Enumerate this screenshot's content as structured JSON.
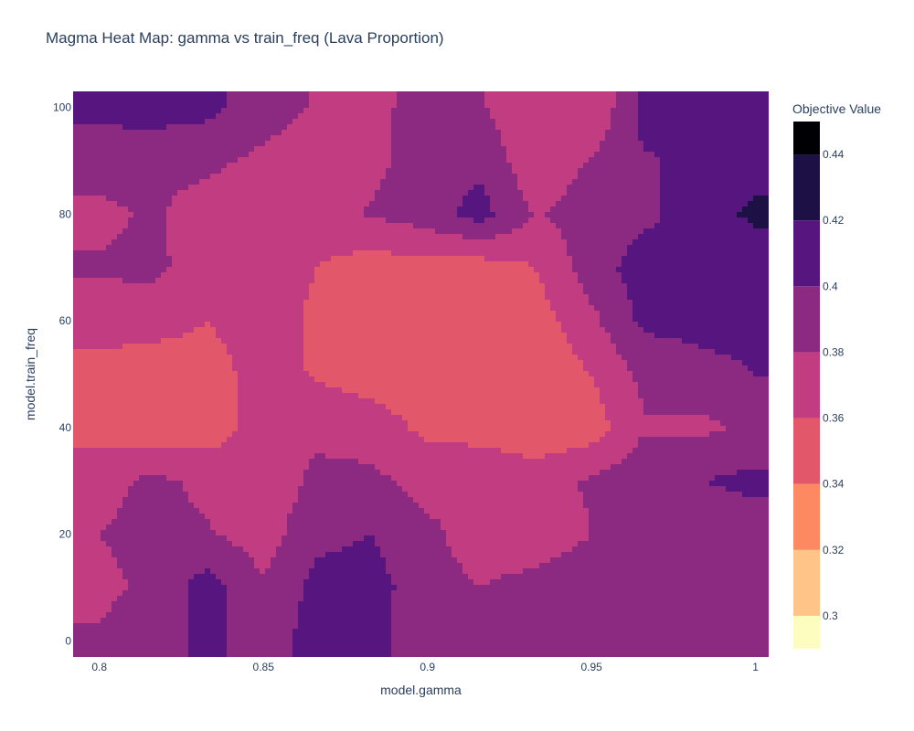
{
  "chart_data": {
    "type": "heatmap",
    "title": "Magma Heat Map: gamma vs train_freq (Lava Proportion)",
    "xlabel": "model.gamma",
    "ylabel": "model.train_freq",
    "xlim": [
      0.792,
      1.004
    ],
    "ylim": [
      -3,
      103
    ],
    "x_ticks": [
      0.8,
      0.85,
      0.9,
      0.95,
      1
    ],
    "x_tick_labels": [
      "0.8",
      "0.85",
      "0.9",
      "0.95",
      "1"
    ],
    "y_ticks": [
      0,
      20,
      40,
      60,
      80,
      100
    ],
    "y_tick_labels": [
      "0",
      "20",
      "40",
      "60",
      "80",
      "100"
    ],
    "colorbar": {
      "title": "Objective Value",
      "range": [
        0.29,
        0.45
      ],
      "ticks": [
        0.3,
        0.32,
        0.34,
        0.36,
        0.38,
        0.4,
        0.42,
        0.44
      ],
      "tick_labels": [
        "0.3",
        "0.32",
        "0.34",
        "0.36",
        "0.38",
        "0.4",
        "0.42",
        "0.44"
      ],
      "levels": [
        {
          "min": 0.29,
          "max": 0.3,
          "color": "#fcfdbf"
        },
        {
          "min": 0.3,
          "max": 0.32,
          "color": "#fec488"
        },
        {
          "min": 0.32,
          "max": 0.34,
          "color": "#fc8961"
        },
        {
          "min": 0.34,
          "max": 0.36,
          "color": "#e3576a"
        },
        {
          "min": 0.36,
          "max": 0.38,
          "color": "#c13c80"
        },
        {
          "min": 0.38,
          "max": 0.4,
          "color": "#8c2981"
        },
        {
          "min": 0.4,
          "max": 0.42,
          "color": "#571580"
        },
        {
          "min": 0.42,
          "max": 0.44,
          "color": "#1c1044"
        },
        {
          "min": 0.44,
          "max": 0.45,
          "color": "#000004"
        }
      ]
    },
    "x": [
      0.8,
      0.816,
      0.833,
      0.85,
      0.866,
      0.883,
      0.9,
      0.916,
      0.933,
      0.95,
      0.966,
      0.983,
      1.0
    ],
    "y": [
      0,
      10,
      20,
      30,
      40,
      50,
      60,
      70,
      80,
      90,
      100
    ],
    "z": [
      [
        0.383,
        0.392,
        0.405,
        0.39,
        0.408,
        0.41,
        0.382,
        0.383,
        0.39,
        0.398,
        0.39,
        0.385,
        0.385
      ],
      [
        0.375,
        0.384,
        0.41,
        0.382,
        0.406,
        0.408,
        0.388,
        0.38,
        0.388,
        0.4,
        0.388,
        0.384,
        0.384
      ],
      [
        0.38,
        0.386,
        0.382,
        0.37,
        0.395,
        0.4,
        0.385,
        0.37,
        0.365,
        0.38,
        0.385,
        0.385,
        0.39
      ],
      [
        0.372,
        0.385,
        0.375,
        0.365,
        0.385,
        0.385,
        0.372,
        0.38,
        0.375,
        0.382,
        0.395,
        0.4,
        0.405
      ],
      [
        0.352,
        0.345,
        0.35,
        0.368,
        0.375,
        0.37,
        0.355,
        0.35,
        0.34,
        0.35,
        0.378,
        0.375,
        0.385
      ],
      [
        0.352,
        0.345,
        0.35,
        0.37,
        0.358,
        0.35,
        0.348,
        0.345,
        0.345,
        0.36,
        0.385,
        0.395,
        0.4
      ],
      [
        0.37,
        0.37,
        0.36,
        0.372,
        0.355,
        0.348,
        0.35,
        0.348,
        0.35,
        0.375,
        0.405,
        0.405,
        0.405
      ],
      [
        0.382,
        0.385,
        0.37,
        0.375,
        0.36,
        0.35,
        0.352,
        0.35,
        0.36,
        0.39,
        0.41,
        0.405,
        0.402
      ],
      [
        0.375,
        0.383,
        0.37,
        0.362,
        0.372,
        0.382,
        0.39,
        0.408,
        0.378,
        0.39,
        0.395,
        0.41,
        0.425
      ],
      [
        0.39,
        0.385,
        0.385,
        0.375,
        0.37,
        0.375,
        0.39,
        0.395,
        0.365,
        0.382,
        0.398,
        0.405,
        0.41
      ],
      [
        0.405,
        0.41,
        0.405,
        0.39,
        0.378,
        0.368,
        0.398,
        0.382,
        0.365,
        0.36,
        0.408,
        0.405,
        0.405
      ]
    ]
  }
}
